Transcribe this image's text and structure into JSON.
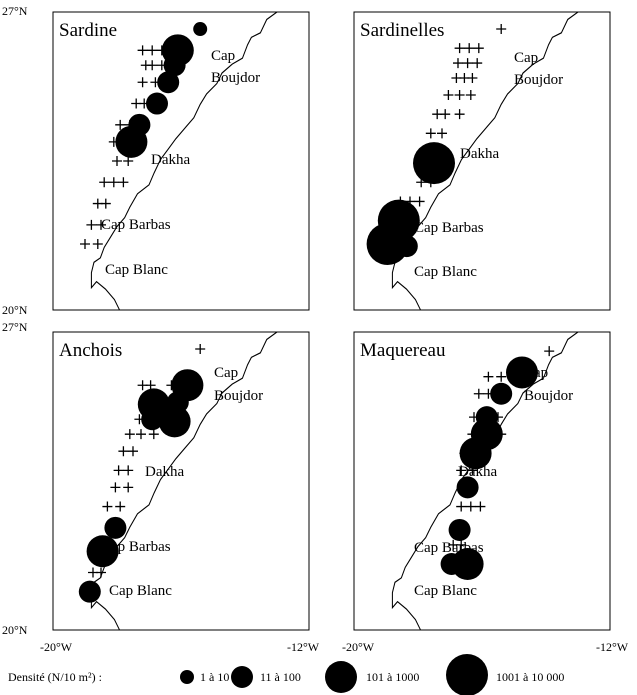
{
  "axes": {
    "lat_top": "27°N",
    "lat_bottom": "20°N",
    "lon_left": "-20°W",
    "lon_right": "-12°W"
  },
  "places": {
    "cap": "Cap",
    "boujdor": "Boujdor",
    "dakha": "Dakha",
    "cap_barbas": "Cap Barbas",
    "cap_blanc": "Cap Blanc"
  },
  "legend": {
    "title": "Densité (N/10 m²) :",
    "classes": [
      {
        "label": "1 à 10",
        "size_class": 1
      },
      {
        "label": "11 à 100",
        "size_class": 2
      },
      {
        "label": "101 à 1000",
        "size_class": 3
      },
      {
        "label": "1001 à 10 000",
        "size_class": 4
      }
    ]
  },
  "colors": {
    "ink": "#000000",
    "background": "#ffffff"
  },
  "panels": [
    {
      "title": "Sardine",
      "stations": [
        {
          "lon": -15.4,
          "lat": 26.6,
          "class": 1
        },
        {
          "lon": -16.1,
          "lat": 26.1,
          "class": 3
        },
        {
          "lon": -16.2,
          "lat": 25.75,
          "class": 2
        },
        {
          "lon": -16.4,
          "lat": 25.35,
          "class": 2
        },
        {
          "lon": -16.75,
          "lat": 24.85,
          "class": 2
        },
        {
          "lon": -17.3,
          "lat": 24.35,
          "class": 2
        },
        {
          "lon": -17.55,
          "lat": 23.95,
          "class": 3
        }
      ],
      "empty": [
        {
          "lon": -16.6,
          "lat": 26.1
        },
        {
          "lon": -16.9,
          "lat": 26.1
        },
        {
          "lon": -17.2,
          "lat": 26.1
        },
        {
          "lon": -16.6,
          "lat": 25.75
        },
        {
          "lon": -16.9,
          "lat": 25.75
        },
        {
          "lon": -17.1,
          "lat": 25.75
        },
        {
          "lon": -16.8,
          "lat": 25.35
        },
        {
          "lon": -17.2,
          "lat": 25.35
        },
        {
          "lon": -17.15,
          "lat": 24.85
        },
        {
          "lon": -17.4,
          "lat": 24.85
        },
        {
          "lon": -17.6,
          "lat": 24.35
        },
        {
          "lon": -17.9,
          "lat": 24.35
        },
        {
          "lon": -18.1,
          "lat": 23.95
        },
        {
          "lon": -17.65,
          "lat": 23.5
        },
        {
          "lon": -18.0,
          "lat": 23.5
        },
        {
          "lon": -17.8,
          "lat": 23.0
        },
        {
          "lon": -18.1,
          "lat": 23.0
        },
        {
          "lon": -18.4,
          "lat": 23.0
        },
        {
          "lon": -18.35,
          "lat": 22.5
        },
        {
          "lon": -18.6,
          "lat": 22.5
        },
        {
          "lon": -18.5,
          "lat": 22.0
        },
        {
          "lon": -18.8,
          "lat": 22.0
        },
        {
          "lon": -18.6,
          "lat": 21.55
        },
        {
          "lon": -19.0,
          "lat": 21.55
        }
      ]
    },
    {
      "title": "Sardinelles",
      "stations": [
        {
          "lon": -17.5,
          "lat": 23.45,
          "class": 4
        },
        {
          "lon": -18.6,
          "lat": 22.1,
          "class": 4
        },
        {
          "lon": -18.95,
          "lat": 21.55,
          "class": 4
        },
        {
          "lon": -18.35,
          "lat": 21.5,
          "class": 2
        }
      ],
      "empty": [
        {
          "lon": -15.4,
          "lat": 26.6
        },
        {
          "lon": -16.1,
          "lat": 26.15
        },
        {
          "lon": -16.4,
          "lat": 26.15
        },
        {
          "lon": -16.7,
          "lat": 26.15
        },
        {
          "lon": -16.15,
          "lat": 25.8
        },
        {
          "lon": -16.45,
          "lat": 25.8
        },
        {
          "lon": -16.75,
          "lat": 25.8
        },
        {
          "lon": -16.3,
          "lat": 25.45
        },
        {
          "lon": -16.55,
          "lat": 25.45
        },
        {
          "lon": -16.8,
          "lat": 25.45
        },
        {
          "lon": -16.35,
          "lat": 25.05
        },
        {
          "lon": -16.7,
          "lat": 25.05
        },
        {
          "lon": -17.05,
          "lat": 25.05
        },
        {
          "lon": -16.7,
          "lat": 24.6
        },
        {
          "lon": -17.15,
          "lat": 24.6
        },
        {
          "lon": -17.4,
          "lat": 24.6
        },
        {
          "lon": -17.25,
          "lat": 24.15
        },
        {
          "lon": -17.6,
          "lat": 24.15
        },
        {
          "lon": -17.6,
          "lat": 23.0
        },
        {
          "lon": -17.9,
          "lat": 23.0
        },
        {
          "lon": -17.95,
          "lat": 22.55
        },
        {
          "lon": -18.25,
          "lat": 22.55
        },
        {
          "lon": -18.55,
          "lat": 22.55
        }
      ]
    },
    {
      "title": "Anchois",
      "stations": [
        {
          "lon": -15.8,
          "lat": 25.75,
          "class": 3
        },
        {
          "lon": -16.85,
          "lat": 25.3,
          "class": 3
        },
        {
          "lon": -16.1,
          "lat": 25.35,
          "class": 2
        },
        {
          "lon": -16.9,
          "lat": 24.95,
          "class": 2
        },
        {
          "lon": -16.2,
          "lat": 24.9,
          "class": 3
        },
        {
          "lon": -18.05,
          "lat": 22.4,
          "class": 2
        },
        {
          "lon": -18.45,
          "lat": 21.85,
          "class": 3
        },
        {
          "lon": -18.85,
          "lat": 20.9,
          "class": 2
        }
      ],
      "empty": [
        {
          "lon": -15.4,
          "lat": 26.6
        },
        {
          "lon": -16.3,
          "lat": 25.75
        },
        {
          "lon": -16.95,
          "lat": 25.75
        },
        {
          "lon": -17.2,
          "lat": 25.75
        },
        {
          "lon": -16.6,
          "lat": 25.35
        },
        {
          "lon": -17.3,
          "lat": 24.95
        },
        {
          "lon": -16.85,
          "lat": 24.6
        },
        {
          "lon": -17.25,
          "lat": 24.6
        },
        {
          "lon": -17.6,
          "lat": 24.6
        },
        {
          "lon": -17.5,
          "lat": 24.2
        },
        {
          "lon": -17.8,
          "lat": 24.2
        },
        {
          "lon": -17.65,
          "lat": 23.75
        },
        {
          "lon": -17.95,
          "lat": 23.75
        },
        {
          "lon": -17.65,
          "lat": 23.35
        },
        {
          "lon": -18.05,
          "lat": 23.35
        },
        {
          "lon": -17.9,
          "lat": 22.9
        },
        {
          "lon": -18.3,
          "lat": 22.9
        },
        {
          "lon": -18.5,
          "lat": 21.35
        },
        {
          "lon": -18.75,
          "lat": 21.35
        }
      ]
    },
    {
      "title": "Maquereau",
      "stations": [
        {
          "lon": -14.75,
          "lat": 26.05,
          "class": 3
        },
        {
          "lon": -15.4,
          "lat": 25.55,
          "class": 2
        },
        {
          "lon": -15.85,
          "lat": 25.0,
          "class": 2
        },
        {
          "lon": -15.85,
          "lat": 24.6,
          "class": 3
        },
        {
          "lon": -16.2,
          "lat": 24.15,
          "class": 3
        },
        {
          "lon": -16.45,
          "lat": 23.35,
          "class": 2
        },
        {
          "lon": -16.7,
          "lat": 22.35,
          "class": 2
        },
        {
          "lon": -16.95,
          "lat": 21.55,
          "class": 2
        },
        {
          "lon": -16.45,
          "lat": 21.55,
          "class": 3
        }
      ],
      "empty": [
        {
          "lon": -13.9,
          "lat": 26.55
        },
        {
          "lon": -15.4,
          "lat": 25.95
        },
        {
          "lon": -15.8,
          "lat": 25.95
        },
        {
          "lon": -15.8,
          "lat": 25.55
        },
        {
          "lon": -16.1,
          "lat": 25.55
        },
        {
          "lon": -15.5,
          "lat": 25.0
        },
        {
          "lon": -16.25,
          "lat": 25.0
        },
        {
          "lon": -15.4,
          "lat": 24.6
        },
        {
          "lon": -16.3,
          "lat": 24.6
        },
        {
          "lon": -16.55,
          "lat": 24.15
        },
        {
          "lon": -16.3,
          "lat": 23.75
        },
        {
          "lon": -16.65,
          "lat": 23.75
        },
        {
          "lon": -16.05,
          "lat": 22.9
        },
        {
          "lon": -16.35,
          "lat": 22.9
        },
        {
          "lon": -16.65,
          "lat": 22.9
        },
        {
          "lon": -16.65,
          "lat": 22.0
        },
        {
          "lon": -16.9,
          "lat": 22.0
        }
      ]
    }
  ]
}
